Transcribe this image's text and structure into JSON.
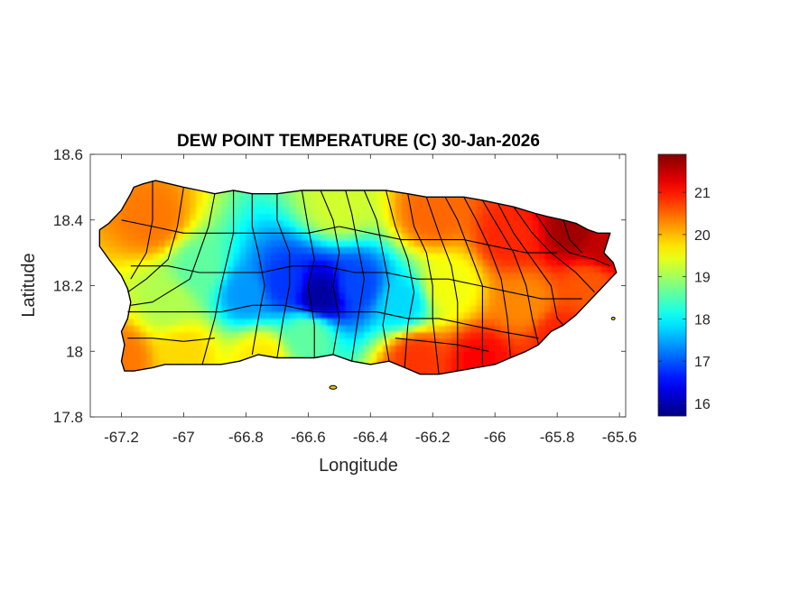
{
  "chart_data": {
    "type": "heatmap",
    "title": "DEW POINT TEMPERATURE (C) 30-Jan-2026",
    "xlabel": "Longitude",
    "ylabel": "Latitude",
    "xlim": [
      -67.3,
      -65.58
    ],
    "ylim": [
      17.8,
      18.6
    ],
    "x_ticks": [
      -67.2,
      -67.0,
      -66.8,
      -66.6,
      -66.4,
      -66.2,
      -66.0,
      -65.8,
      -65.6
    ],
    "x_tick_labels": [
      "-67.2",
      "-67",
      "-66.8",
      "-66.6",
      "-66.4",
      "-66.2",
      "-66",
      "-65.8",
      "-65.6"
    ],
    "y_ticks": [
      17.8,
      18.0,
      18.2,
      18.4,
      18.6
    ],
    "y_tick_labels": [
      "17.8",
      "18",
      "18.2",
      "18.4",
      "18.6"
    ],
    "colorbar": {
      "colormap": "jet",
      "range": [
        15.7,
        21.9
      ],
      "ticks": [
        16,
        17,
        18,
        19,
        20,
        21
      ],
      "tick_labels": [
        "16",
        "17",
        "18",
        "19",
        "20",
        "21"
      ]
    },
    "field_anchors": [
      {
        "lon": -66.56,
        "lat": 18.17,
        "value": 15.9
      },
      {
        "lon": -66.68,
        "lat": 18.21,
        "value": 16.8
      },
      {
        "lon": -66.44,
        "lat": 18.2,
        "value": 16.9
      },
      {
        "lon": -66.8,
        "lat": 18.18,
        "value": 17.4
      },
      {
        "lon": -66.3,
        "lat": 18.15,
        "value": 17.8
      },
      {
        "lon": -66.6,
        "lat": 18.05,
        "value": 18.6
      },
      {
        "lon": -66.95,
        "lat": 18.25,
        "value": 18.6
      },
      {
        "lon": -67.05,
        "lat": 18.15,
        "value": 19.1
      },
      {
        "lon": -67.1,
        "lat": 18.4,
        "value": 20.4
      },
      {
        "lon": -67.2,
        "lat": 17.98,
        "value": 20.4
      },
      {
        "lon": -67.0,
        "lat": 18.0,
        "value": 19.8
      },
      {
        "lon": -66.75,
        "lat": 17.98,
        "value": 19.7
      },
      {
        "lon": -66.5,
        "lat": 18.45,
        "value": 19.3
      },
      {
        "lon": -66.2,
        "lat": 18.42,
        "value": 20.5
      },
      {
        "lon": -66.15,
        "lat": 18.2,
        "value": 19.5
      },
      {
        "lon": -66.25,
        "lat": 17.98,
        "value": 20.8
      },
      {
        "lon": -66.05,
        "lat": 17.97,
        "value": 21.1
      },
      {
        "lon": -65.95,
        "lat": 18.35,
        "value": 20.9
      },
      {
        "lon": -65.9,
        "lat": 18.15,
        "value": 20.3
      },
      {
        "lon": -65.75,
        "lat": 18.37,
        "value": 21.7
      },
      {
        "lon": -65.65,
        "lat": 18.33,
        "value": 21.5
      },
      {
        "lon": -65.8,
        "lat": 18.05,
        "value": 20.9
      },
      {
        "lon": -65.7,
        "lat": 18.2,
        "value": 20.6
      }
    ],
    "grid": false,
    "legend": "colorbar-right"
  }
}
